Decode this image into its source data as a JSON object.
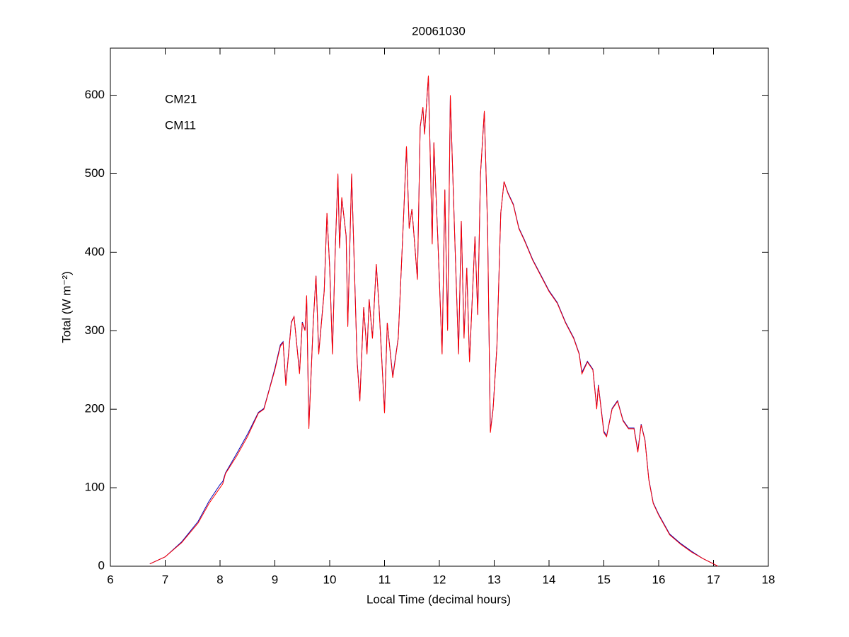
{
  "chart_data": {
    "type": "line",
    "title": "20061030",
    "xlabel": "Local Time (decimal hours)",
    "ylabel": "Total (W m⁻²)",
    "xlim": [
      6,
      18
    ],
    "xticks": [
      6,
      7,
      8,
      9,
      10,
      11,
      12,
      13,
      14,
      15,
      16,
      17,
      18
    ],
    "ylim": [
      0,
      660
    ],
    "yticks": [
      0,
      100,
      200,
      300,
      400,
      500,
      600
    ],
    "legend": "upper left",
    "grid": false,
    "x": [
      6.72,
      7.0,
      7.3,
      7.6,
      7.8,
      8.0,
      8.05,
      8.1,
      8.3,
      8.5,
      8.7,
      8.8,
      8.9,
      9.0,
      9.1,
      9.15,
      9.2,
      9.3,
      9.35,
      9.45,
      9.5,
      9.55,
      9.58,
      9.62,
      9.7,
      9.75,
      9.8,
      9.9,
      9.95,
      10.0,
      10.05,
      10.1,
      10.15,
      10.18,
      10.22,
      10.3,
      10.33,
      10.4,
      10.45,
      10.5,
      10.55,
      10.62,
      10.68,
      10.72,
      10.78,
      10.85,
      10.9,
      11.0,
      11.05,
      11.15,
      11.25,
      11.35,
      11.4,
      11.45,
      11.5,
      11.6,
      11.65,
      11.7,
      11.73,
      11.8,
      11.87,
      11.9,
      11.97,
      12.05,
      12.1,
      12.15,
      12.2,
      12.28,
      12.35,
      12.4,
      12.45,
      12.5,
      12.55,
      12.65,
      12.7,
      12.75,
      12.82,
      12.88,
      12.93,
      12.98,
      13.05,
      13.12,
      13.18,
      13.25,
      13.35,
      13.45,
      13.55,
      13.7,
      13.85,
      14.0,
      14.15,
      14.3,
      14.45,
      14.55,
      14.6,
      14.7,
      14.8,
      14.87,
      14.9,
      15.0,
      15.05,
      15.15,
      15.25,
      15.35,
      15.45,
      15.55,
      15.62,
      15.68,
      15.75,
      15.82,
      15.9,
      16.0,
      16.2,
      16.4,
      16.6,
      16.8,
      17.0,
      17.08
    ],
    "series": [
      {
        "name": "CM21",
        "color": "#0000b4",
        "values": [
          3,
          12,
          31,
          57,
          83,
          104,
          108,
          119,
          143,
          168,
          196,
          201,
          226,
          252,
          282,
          286,
          232,
          311,
          318,
          247,
          311,
          301,
          344,
          178,
          311,
          370,
          272,
          351,
          449,
          381,
          272,
          401,
          498,
          406,
          469,
          421,
          307,
          499,
          381,
          262,
          212,
          330,
          272,
          340,
          291,
          384,
          331,
          197,
          310,
          242,
          291,
          449,
          534,
          431,
          455,
          366,
          559,
          584,
          551,
          624,
          412,
          539,
          421,
          272,
          479,
          302,
          599,
          421,
          272,
          440,
          292,
          380,
          262,
          420,
          321,
          499,
          579,
          431,
          172,
          201,
          281,
          450,
          490,
          476,
          461,
          431,
          416,
          391,
          371,
          351,
          336,
          311,
          291,
          271,
          247,
          261,
          251,
          202,
          231,
          172,
          166,
          201,
          211,
          186,
          176,
          176,
          147,
          181,
          161,
          111,
          81,
          66,
          41,
          29,
          19,
          10,
          3,
          0
        ]
      },
      {
        "name": "CM11",
        "color": "#ff0000",
        "values": [
          3,
          12,
          30,
          55,
          80,
          100,
          105,
          118,
          140,
          165,
          195,
          200,
          225,
          250,
          280,
          285,
          230,
          310,
          318,
          245,
          310,
          300,
          345,
          175,
          310,
          370,
          270,
          350,
          450,
          380,
          270,
          400,
          500,
          405,
          470,
          420,
          305,
          500,
          380,
          260,
          210,
          330,
          270,
          340,
          290,
          385,
          330,
          195,
          310,
          240,
          290,
          450,
          535,
          430,
          455,
          365,
          560,
          585,
          550,
          625,
          410,
          540,
          420,
          270,
          480,
          300,
          600,
          420,
          270,
          440,
          290,
          380,
          260,
          420,
          320,
          500,
          580,
          430,
          170,
          200,
          280,
          450,
          490,
          475,
          460,
          430,
          415,
          390,
          370,
          350,
          335,
          310,
          290,
          270,
          245,
          260,
          250,
          200,
          230,
          170,
          165,
          200,
          210,
          185,
          175,
          175,
          145,
          180,
          160,
          110,
          80,
          65,
          40,
          28,
          18,
          10,
          3,
          0
        ]
      }
    ]
  }
}
